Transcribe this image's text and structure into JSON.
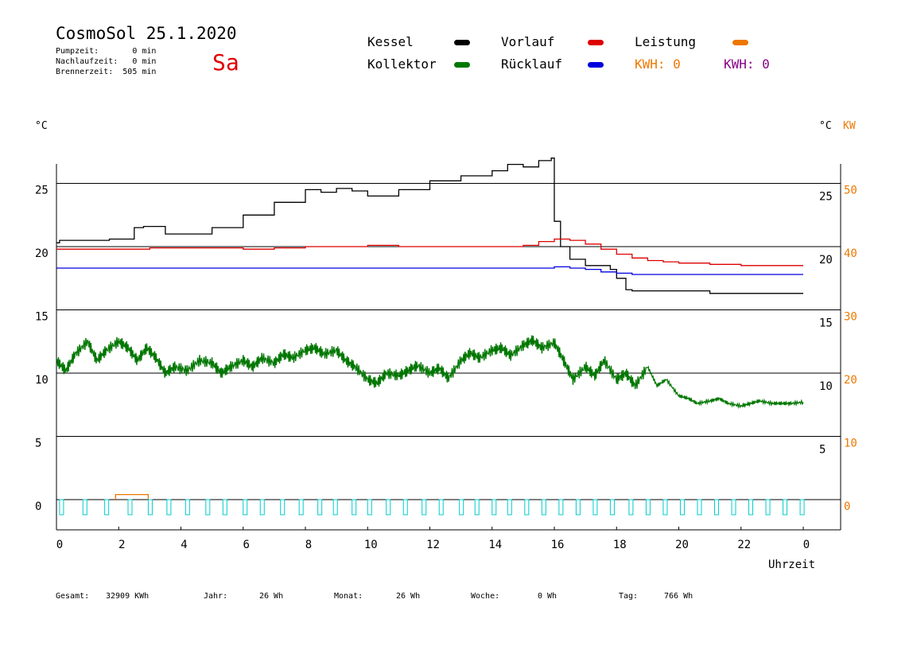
{
  "header": {
    "title": "CosmoSol 25.1.2020",
    "day": "Sa",
    "pumpzeit": "Pumpzeit:       0 min",
    "nachlaufzeit": "Nachlaufzeit:   0 min",
    "brennerzeit": "Brennerzeit:  505 min"
  },
  "legend": {
    "kessel": "Kessel",
    "kollektor": "Kollektor",
    "vorlauf": "Vorlauf",
    "ruecklauf": "Rücklauf",
    "leistung": "Leistung",
    "kwh1": "KWH: 0",
    "kwh2": "KWH: 0"
  },
  "axes": {
    "left_unit": "°C",
    "right_unit": "°C",
    "right_kw_unit": "KW",
    "xlabel": "Uhrzeit"
  },
  "footer": {
    "gesamt_label": "Gesamt:",
    "gesamt_value": "32909 KWh",
    "jahr_label": "Jahr:",
    "jahr_value": "26 Wh",
    "monat_label": "Monat:",
    "monat_value": "26 Wh",
    "woche_label": "Woche:",
    "woche_value": "0 Wh",
    "tag_label": "Tag:",
    "tag_value": "766 Wh"
  },
  "colors": {
    "kessel": "#000000",
    "kollektor": "#007700",
    "vorlauf": "#dd0000",
    "ruecklauf": "#0000dd",
    "leistung": "#ee7700",
    "kwh2": "#880088",
    "pump": "#00cccc"
  },
  "chart_data": {
    "type": "line",
    "x_ticks": [
      "0",
      "2",
      "4",
      "6",
      "8",
      "10",
      "12",
      "14",
      "16",
      "18",
      "20",
      "22",
      "0"
    ],
    "x_range": [
      0,
      24
    ],
    "left_ticks": [
      "25",
      "20",
      "15",
      "10",
      "5",
      "0"
    ],
    "right_temp_ticks": [
      "25",
      "20",
      "15",
      "10",
      "5"
    ],
    "right_kw_ticks": [
      "50",
      "40",
      "30",
      "20",
      "10",
      "0"
    ],
    "ylim": [
      -2,
      27
    ],
    "series": [
      {
        "name": "Kessel",
        "color_key": "kessel",
        "x": [
          0,
          0.1,
          1.7,
          2.5,
          2.8,
          3.5,
          4.5,
          5.0,
          6.0,
          7.0,
          8.0,
          8.5,
          9.0,
          9.5,
          10.0,
          11.0,
          12.0,
          13.0,
          14.0,
          14.5,
          15.0,
          15.5,
          15.9,
          16.0,
          16.2,
          16.5,
          17.0,
          17.8,
          18.0,
          18.3,
          18.5,
          19.0,
          20.0,
          21.0,
          22.0,
          23.0,
          24.0
        ],
        "y": [
          20.3,
          20.5,
          20.6,
          21.5,
          21.6,
          21.0,
          21.0,
          21.5,
          22.5,
          23.5,
          24.5,
          24.3,
          24.6,
          24.4,
          24.0,
          24.5,
          25.2,
          25.6,
          26.0,
          26.5,
          26.3,
          26.8,
          27.0,
          22.0,
          20.0,
          19.0,
          18.5,
          18.2,
          17.5,
          16.6,
          16.5,
          16.5,
          16.5,
          16.3,
          16.3,
          16.3,
          16.3
        ]
      },
      {
        "name": "Vorlauf",
        "color_key": "vorlauf",
        "x": [
          0,
          1,
          2,
          3,
          4,
          5,
          6,
          7,
          8,
          9,
          10,
          11,
          12,
          13,
          14,
          15,
          15.5,
          16,
          16.5,
          17,
          17.5,
          18,
          18.5,
          19,
          19.5,
          20,
          21,
          22,
          23,
          24
        ],
        "y": [
          19.8,
          19.8,
          19.8,
          19.9,
          19.9,
          19.9,
          19.8,
          19.9,
          20.0,
          20.0,
          20.1,
          20.0,
          20.0,
          20.0,
          20.0,
          20.1,
          20.4,
          20.6,
          20.5,
          20.2,
          19.8,
          19.4,
          19.1,
          18.9,
          18.8,
          18.7,
          18.6,
          18.5,
          18.5,
          18.5
        ]
      },
      {
        "name": "Rücklauf",
        "color_key": "ruecklauf",
        "x": [
          0,
          2,
          4,
          6,
          8,
          10,
          12,
          14,
          15,
          16,
          16.5,
          17,
          17.5,
          18,
          18.5,
          19,
          20,
          21,
          22,
          23,
          24
        ],
        "y": [
          18.3,
          18.3,
          18.3,
          18.3,
          18.3,
          18.3,
          18.3,
          18.3,
          18.3,
          18.4,
          18.3,
          18.2,
          18.0,
          17.9,
          17.8,
          17.8,
          17.8,
          17.8,
          17.8,
          17.8,
          17.8
        ]
      },
      {
        "name": "Kollektor",
        "color_key": "kollektor",
        "x": [
          0,
          0.3,
          0.6,
          1.0,
          1.3,
          1.6,
          2.0,
          2.3,
          2.6,
          2.9,
          3.2,
          3.5,
          3.8,
          4.2,
          4.6,
          5.0,
          5.3,
          5.6,
          6.0,
          6.3,
          6.6,
          7.0,
          7.3,
          7.6,
          8.0,
          8.3,
          8.6,
          9.0,
          9.3,
          9.6,
          10.0,
          10.3,
          10.6,
          11.0,
          11.3,
          11.6,
          12.0,
          12.3,
          12.6,
          13.0,
          13.3,
          13.6,
          14.0,
          14.3,
          14.6,
          15.0,
          15.3,
          15.6,
          16.0,
          16.3,
          16.6,
          17.0,
          17.3,
          17.6,
          18.0,
          18.3,
          18.6,
          19.0,
          19.3,
          19.6,
          20.0,
          20.3,
          20.6,
          21.0,
          21.3,
          21.6,
          22.0,
          22.3,
          22.6,
          23.0,
          23.3,
          23.6,
          24.0
        ],
        "y": [
          11.0,
          10.2,
          11.5,
          12.5,
          11.0,
          11.8,
          12.5,
          12.0,
          11.0,
          12.0,
          11.2,
          10.0,
          10.5,
          10.2,
          11.0,
          10.8,
          10.0,
          10.5,
          11.0,
          10.5,
          11.2,
          10.8,
          11.5,
          11.2,
          11.8,
          12.0,
          11.5,
          11.8,
          11.0,
          10.5,
          9.5,
          9.2,
          10.0,
          9.8,
          10.2,
          10.6,
          10.0,
          10.4,
          9.6,
          11.0,
          11.6,
          11.2,
          11.8,
          12.0,
          11.4,
          12.2,
          12.6,
          12.0,
          12.4,
          11.0,
          9.5,
          10.5,
          9.8,
          11.0,
          9.5,
          10.0,
          9.0,
          10.5,
          9.0,
          9.5,
          8.2,
          8.0,
          7.6,
          7.8,
          8.0,
          7.6,
          7.4,
          7.6,
          7.8,
          7.6,
          7.6,
          7.6,
          7.7
        ]
      },
      {
        "name": "Leistung",
        "color_key": "leistung",
        "x": [
          1.9,
          1.9,
          2.95,
          2.95
        ],
        "y": [
          0.0,
          0.4,
          0.4,
          0.0
        ]
      }
    ],
    "pump_pulses_hours": [
      0.1,
      0.85,
      1.55,
      2.3,
      2.95,
      3.55,
      4.15,
      4.8,
      5.35,
      6.0,
      6.55,
      7.2,
      7.8,
      8.4,
      8.9,
      9.5,
      10.0,
      10.6,
      11.15,
      11.75,
      12.3,
      12.95,
      13.45,
      14.0,
      14.5,
      15.05,
      15.6,
      16.15,
      16.7,
      17.25,
      17.8,
      18.4,
      18.95,
      19.5,
      20.05,
      20.6,
      21.15,
      21.7,
      22.25,
      22.8,
      23.35,
      23.9
    ],
    "grid": true
  }
}
